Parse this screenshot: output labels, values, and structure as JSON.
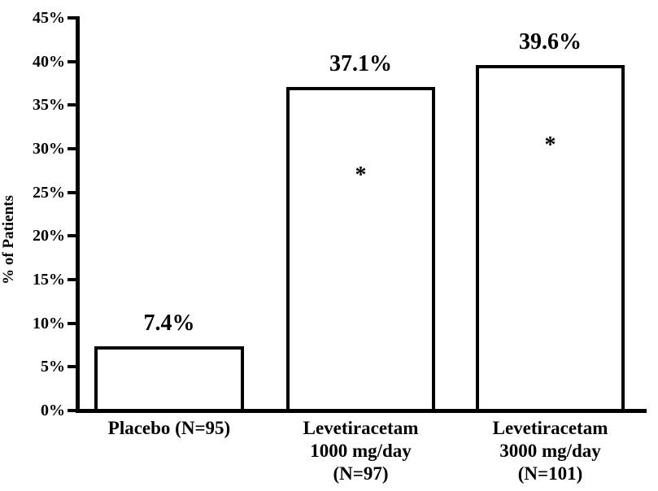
{
  "chart_data": {
    "type": "bar",
    "title": "",
    "xlabel": "",
    "ylabel": "% of Patients",
    "ylim": [
      0,
      45
    ],
    "ytick_step": 5,
    "ytick_labels": [
      "0%",
      "5%",
      "10%",
      "15%",
      "20%",
      "25%",
      "30%",
      "35%",
      "40%",
      "45%"
    ],
    "grid": false,
    "legend": false,
    "bar_fill_color": "#ffffff",
    "bar_border_color": "#000000",
    "text_color": "#000000",
    "categories": [
      {
        "label_lines": [
          "Placebo (N=95)"
        ],
        "value": 7.4,
        "value_label": "7.4%",
        "annotation": ""
      },
      {
        "label_lines": [
          "Levetiracetam",
          "1000 mg/day",
          "(N=97)"
        ],
        "value": 37.1,
        "value_label": "37.1%",
        "annotation": "*"
      },
      {
        "label_lines": [
          "Levetiracetam",
          "3000 mg/day",
          "(N=101)"
        ],
        "value": 39.6,
        "value_label": "39.6%",
        "annotation": "*"
      }
    ]
  }
}
